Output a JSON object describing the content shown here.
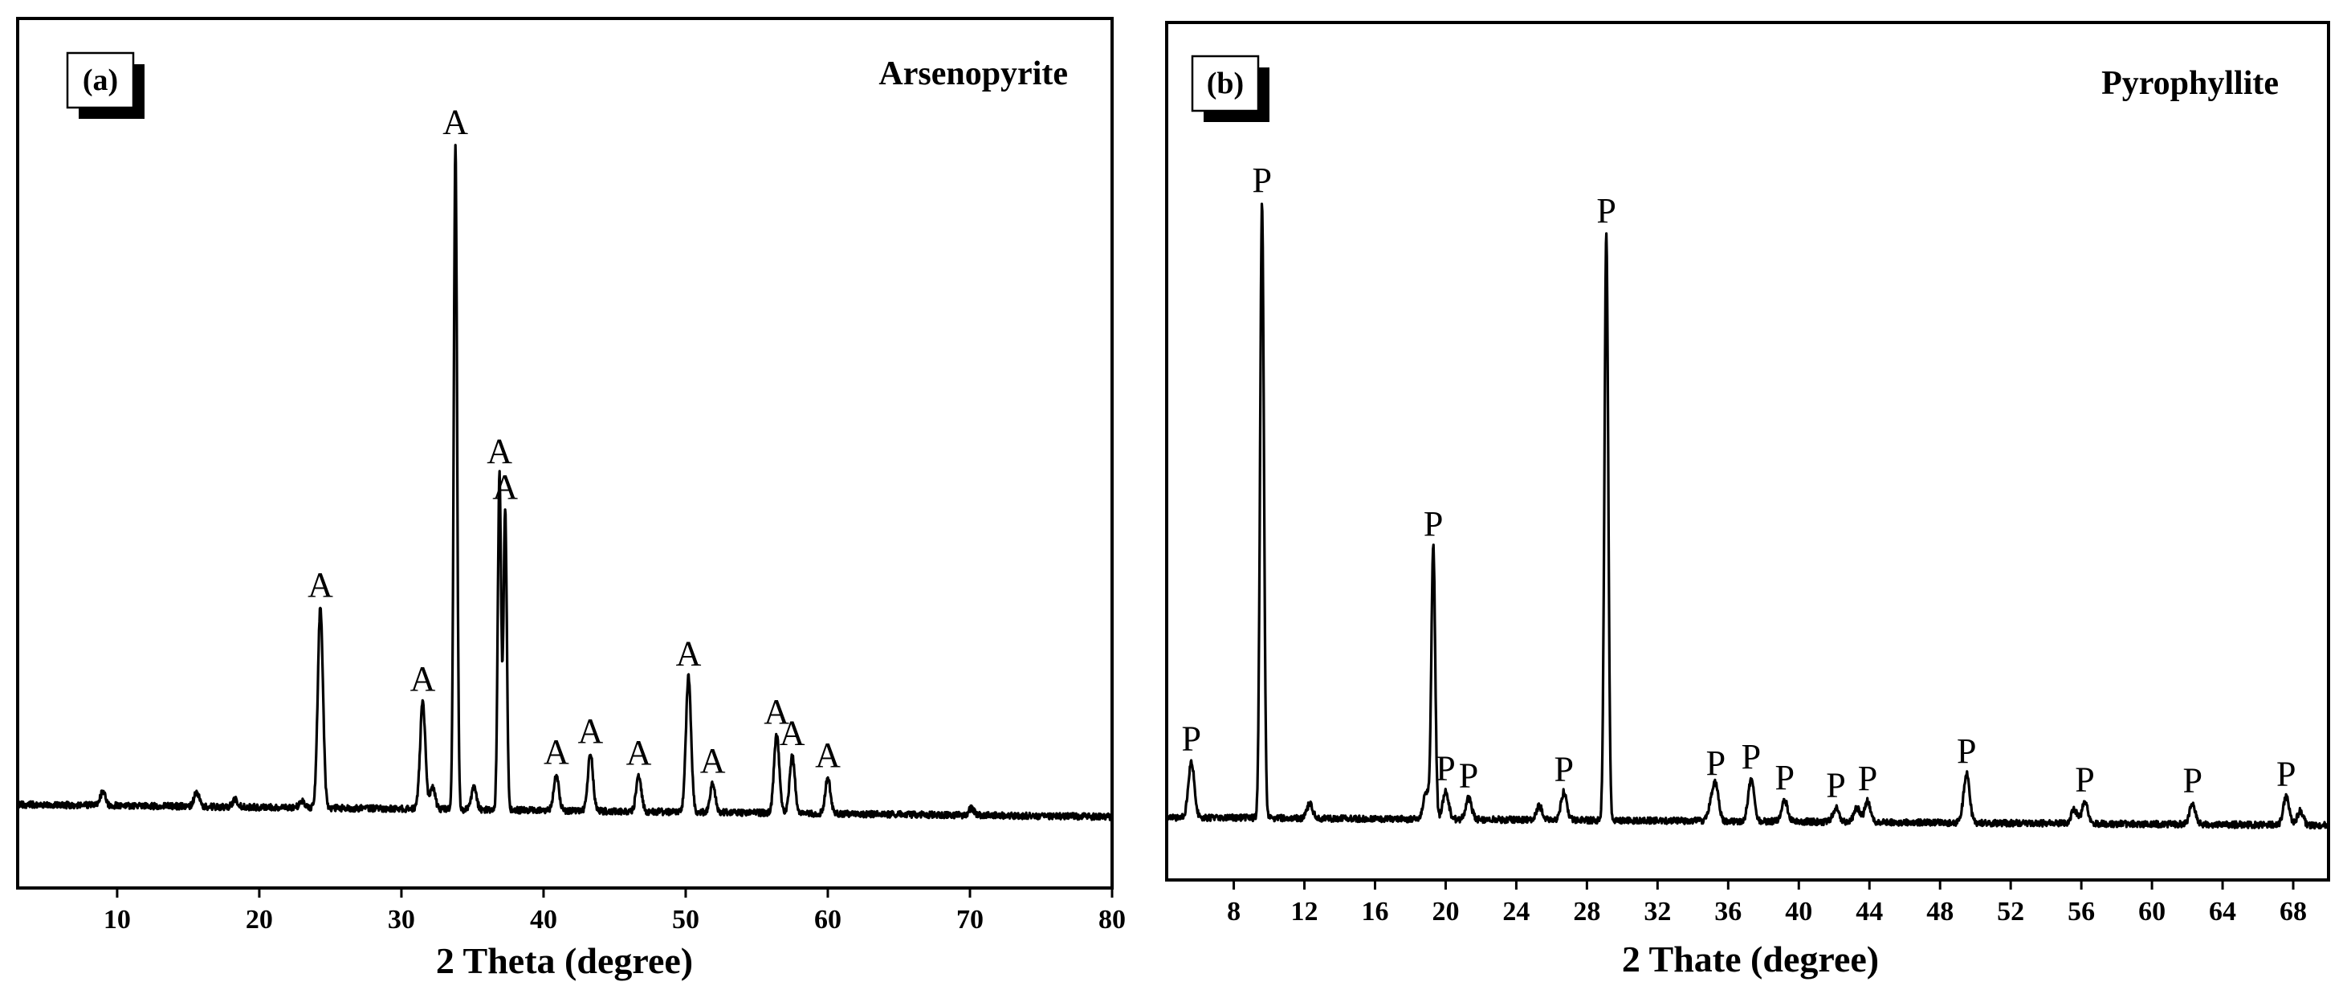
{
  "chart_data": [
    {
      "type": "line",
      "panel_tag": "(a)",
      "title": "Arsenopyrite",
      "xlabel": "2 Theta (degree)",
      "ylabel": "",
      "xlim": [
        3,
        80
      ],
      "ylim": [
        0,
        100
      ],
      "xticks": [
        10,
        20,
        30,
        40,
        50,
        60,
        70,
        80
      ],
      "peak_marker": "A",
      "peaks": [
        {
          "x": 24.3,
          "y": 28
        },
        {
          "x": 31.5,
          "y": 15
        },
        {
          "x": 33.8,
          "y": 93
        },
        {
          "x": 36.9,
          "y": 47
        },
        {
          "x": 37.3,
          "y": 42
        },
        {
          "x": 40.9,
          "y": 5
        },
        {
          "x": 43.3,
          "y": 8
        },
        {
          "x": 46.7,
          "y": 5
        },
        {
          "x": 50.2,
          "y": 19
        },
        {
          "x": 51.9,
          "y": 4
        },
        {
          "x": 56.4,
          "y": 11
        },
        {
          "x": 57.5,
          "y": 8
        },
        {
          "x": 60.0,
          "y": 5
        }
      ],
      "minor_peaks": [
        {
          "x": 9.0,
          "y": 2
        },
        {
          "x": 15.6,
          "y": 2
        },
        {
          "x": 18.3,
          "y": 1
        },
        {
          "x": 23.0,
          "y": 1
        },
        {
          "x": 32.2,
          "y": 3
        },
        {
          "x": 35.1,
          "y": 3
        },
        {
          "x": 70.1,
          "y": 1
        }
      ]
    },
    {
      "type": "line",
      "panel_tag": "(b)",
      "title": "Pyrophyllite",
      "xlabel": "2 Thate (degree)",
      "ylabel": "",
      "xlim": [
        4.2,
        70
      ],
      "ylim": [
        0,
        100
      ],
      "xticks": [
        8,
        12,
        16,
        20,
        24,
        28,
        32,
        36,
        40,
        44,
        48,
        52,
        56,
        60,
        64,
        68
      ],
      "peak_marker": "P",
      "peaks": [
        {
          "x": 5.6,
          "y": 8
        },
        {
          "x": 9.6,
          "y": 88
        },
        {
          "x": 19.3,
          "y": 39
        },
        {
          "x": 20.0,
          "y": 4
        },
        {
          "x": 21.3,
          "y": 3
        },
        {
          "x": 26.7,
          "y": 4
        },
        {
          "x": 29.1,
          "y": 84
        },
        {
          "x": 35.3,
          "y": 5
        },
        {
          "x": 37.3,
          "y": 6
        },
        {
          "x": 39.2,
          "y": 3
        },
        {
          "x": 42.1,
          "y": 2
        },
        {
          "x": 43.9,
          "y": 3
        },
        {
          "x": 49.5,
          "y": 7
        },
        {
          "x": 56.2,
          "y": 3
        },
        {
          "x": 62.3,
          "y": 3
        },
        {
          "x": 67.6,
          "y": 4
        }
      ],
      "minor_peaks": [
        {
          "x": 12.3,
          "y": 2
        },
        {
          "x": 18.9,
          "y": 4
        },
        {
          "x": 25.3,
          "y": 2
        },
        {
          "x": 35.0,
          "y": 2
        },
        {
          "x": 43.3,
          "y": 2
        },
        {
          "x": 55.6,
          "y": 2
        },
        {
          "x": 68.4,
          "y": 2
        }
      ]
    }
  ]
}
